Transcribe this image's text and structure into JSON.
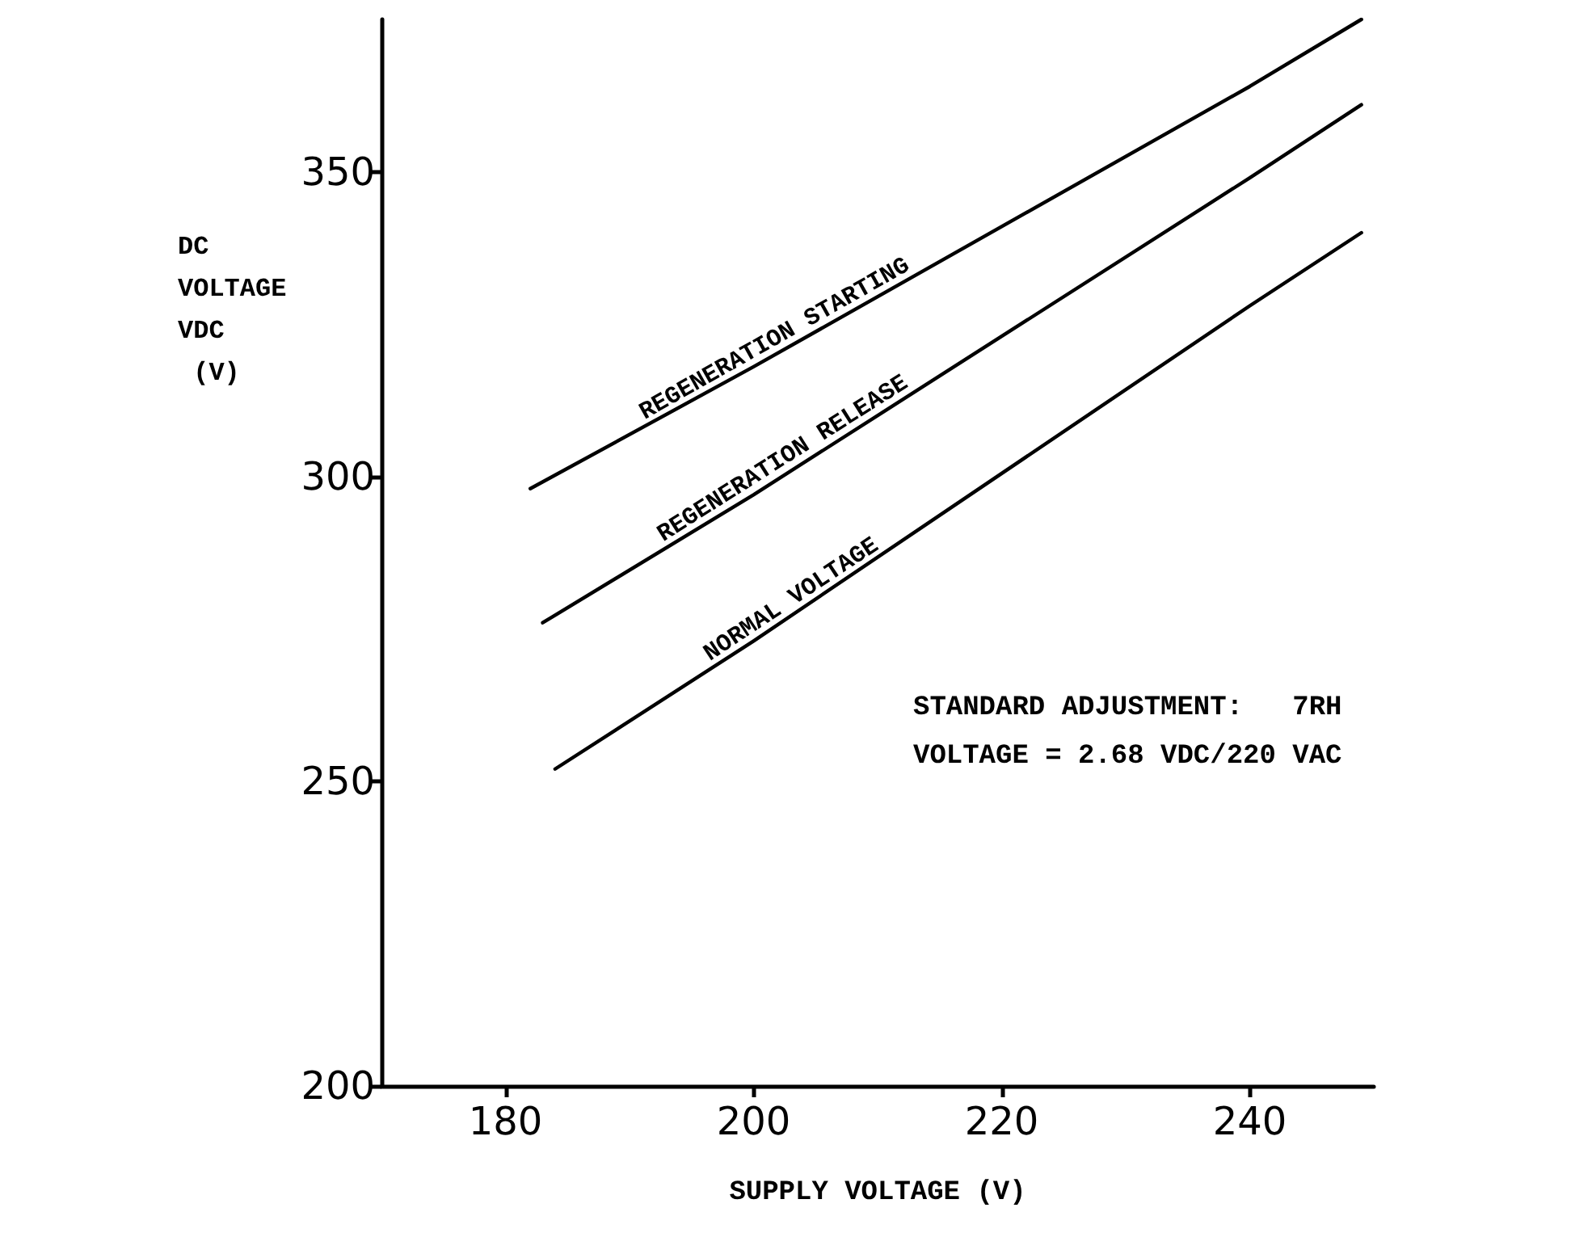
{
  "chart_data": {
    "type": "line",
    "xlabel": "SUPPLY VOLTAGE (V)",
    "ylabel": "DC\nVOLTAGE\nVDC\n (V)",
    "xlim": [
      170,
      250
    ],
    "xticks": [
      180,
      200,
      220,
      240
    ],
    "ylim": [
      200,
      375
    ],
    "yticks": [
      200,
      250,
      300,
      350
    ],
    "series": [
      {
        "name": "REGENERATION STARTING",
        "color": "#000000",
        "x": [
          182,
          200,
          240,
          249
        ],
        "values": [
          298,
          318,
          364,
          375
        ]
      },
      {
        "name": "REGENERATION RELEASE",
        "color": "#000000",
        "x": [
          183,
          200,
          240,
          249
        ],
        "values": [
          276,
          297,
          349,
          361
        ]
      },
      {
        "name": "NORMAL VOLTAGE",
        "color": "#000000",
        "x": [
          184,
          200,
          240,
          249
        ],
        "values": [
          252,
          273,
          328,
          340
        ]
      }
    ],
    "annotations": [
      "STANDARD ADJUSTMENT:   7RH",
      "VOLTAGE = 2.68 VDC/220 VAC"
    ],
    "grid": false,
    "legend": false,
    "marker": "none",
    "line_style": "solid"
  }
}
